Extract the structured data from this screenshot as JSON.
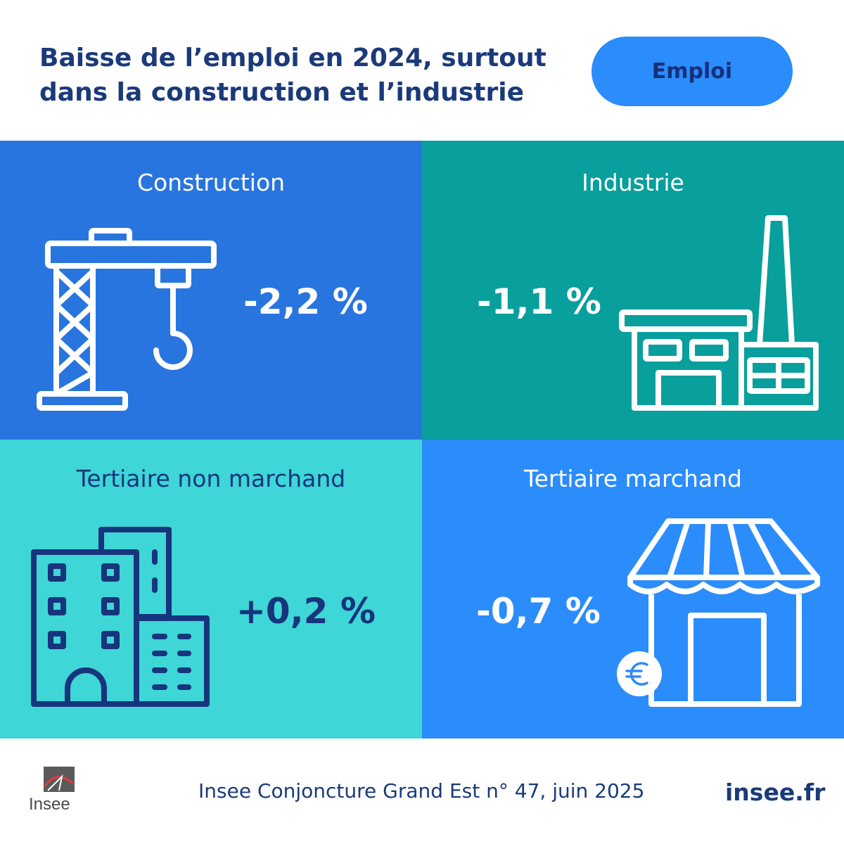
{
  "header": {
    "title_line1": "Baisse de l’emploi en 2024, surtout",
    "title_line2": "dans la construction et l’industrie",
    "tag": "Emploi"
  },
  "panels": [
    {
      "label": "Construction",
      "value": "-2,2 %",
      "icon": "crane-icon",
      "color": "#2975df"
    },
    {
      "label": "Industrie",
      "value": "-1,1 %",
      "icon": "factory-icon",
      "color": "#089f9c"
    },
    {
      "label": "Tertiaire non marchand",
      "value": "+0,2 %",
      "icon": "buildings-icon",
      "color": "#3ed6d7"
    },
    {
      "label": "Tertiaire marchand",
      "value": "-0,7 %",
      "icon": "shop-icon",
      "color": "#2b8cfc"
    }
  ],
  "footer": {
    "logo_word": "Insee",
    "source": "Insee Conjoncture Grand Est n° 47, juin 2025",
    "site": "insee.fr"
  },
  "colors": {
    "navy": "#1b3a7a",
    "icon_navy": "#16357c",
    "white": "#ffffff"
  }
}
